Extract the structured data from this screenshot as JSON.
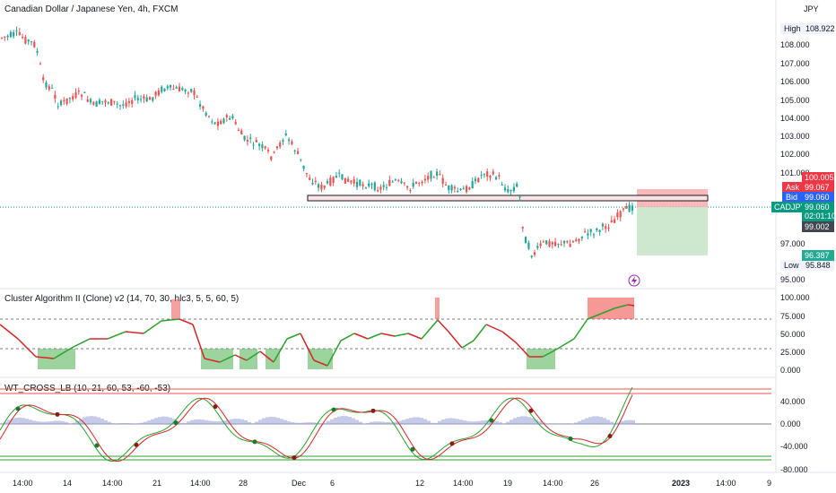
{
  "header": {
    "symbol_title": "Canadian Dollar / Japanese Yen, 4h, FXCM",
    "currency": "JPY"
  },
  "price_axis": {
    "ticks": [
      "108.000",
      "107.000",
      "106.000",
      "105.000",
      "104.000",
      "103.000",
      "102.000",
      "101.000",
      "97.000",
      "95.000"
    ],
    "high_label": "High",
    "high_value": "108.922",
    "low_label": "Low",
    "low_value": "95.848",
    "target_price": "100.005",
    "ask_label": "Ask",
    "ask_price": "99.067",
    "bid_label": "Bid",
    "bid_price": "99.060",
    "symbol_badge": "CADJPY",
    "last_price": "99.060",
    "countdown": "02:01:10",
    "level_price": "99.002",
    "stop_price": "96.387"
  },
  "indicator1": {
    "title": "Cluster Algorithm II (Clone) v2 (14, 70, 30, hlc3, 5, 5, 60, 5)",
    "ticks": [
      "100.000",
      "75.000",
      "50.000",
      "25.000",
      "0.000"
    ]
  },
  "indicator2": {
    "title": "WT_CROSS_LB (10, 21, 60, 53, -60, -53)",
    "ticks": [
      "40.000",
      "0.000",
      "-40.000",
      "-80.000"
    ]
  },
  "time_axis": {
    "labels": [
      "14:00",
      "14",
      "14:00",
      "21",
      "14:00",
      "28",
      "Dec",
      "6",
      "12",
      "14:00",
      "19",
      "14:00",
      "26",
      "2023",
      "14:00",
      "9"
    ]
  },
  "colors": {
    "up": "#26a69a",
    "down": "#ef5350",
    "wave_up": "#2ca02c",
    "wave_down": "#d62728",
    "accent_blue": "#2962ff",
    "ticker_green": "#089981"
  },
  "icons": {
    "lightning": "lightning-icon"
  }
}
